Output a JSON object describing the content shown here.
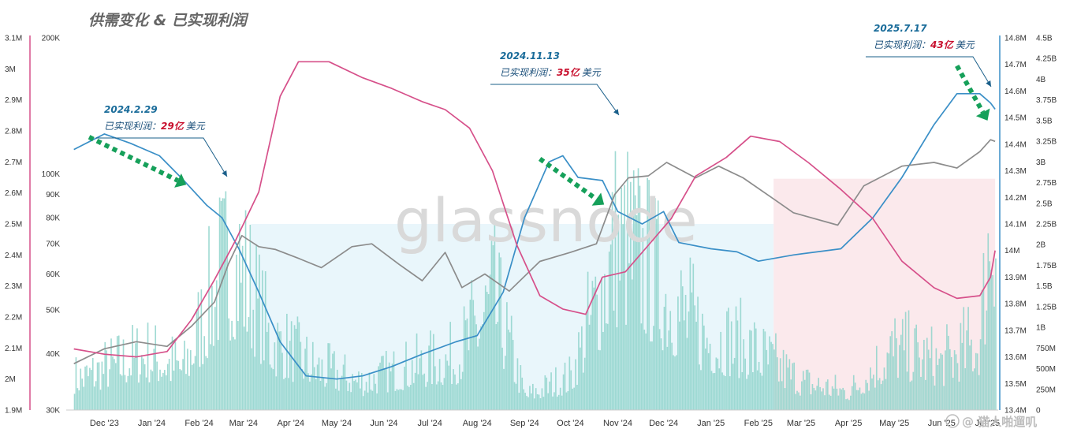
{
  "title": "供需变化 & 已实现利润",
  "watermark": "glassnode",
  "credit": "@ 猫人啪遛叽",
  "colors": {
    "supply_line": "#3a8fc7",
    "price_line": "#d6508a",
    "holders_line": "#8c8c8c",
    "volume_bars": "#8fd3cb",
    "band_blue": "#e9f6fb",
    "band_pink": "#fbe9ec",
    "arrow": "#16a05a",
    "annotation_date": "#1a6c9a",
    "annotation_value": "#c8102e"
  },
  "annotations": [
    {
      "date": "2024.2.29",
      "label": "已实现利润：",
      "value": "29亿",
      "unit": "美元"
    },
    {
      "date": "2024.11.13",
      "label": "已实现利润：",
      "value": "35亿",
      "unit": "美元"
    },
    {
      "date": "2025.7.17",
      "label": "已实现利润：",
      "value": "43亿",
      "unit": "美元"
    }
  ],
  "chart_data": {
    "type": "line",
    "x_ticks": [
      "Dec '23",
      "Jan '24",
      "Feb '24",
      "Mar '24",
      "Apr '24",
      "May '24",
      "Jun '24",
      "Jul '24",
      "Aug '24",
      "Sep '24",
      "Oct '24",
      "Nov '24",
      "Dec '24",
      "Jan '25",
      "Feb '25",
      "Mar '25",
      "Apr '25",
      "May '25",
      "Jun '25",
      "Jul '25"
    ],
    "axes": {
      "left_outer": {
        "scale": "linear",
        "ticks": [
          "3.1M",
          "3M",
          "2.9M",
          "2.8M",
          "2.7M",
          "2.6M",
          "2.5M",
          "2.4M",
          "2.3M",
          "2.2M",
          "2.1M",
          "2M",
          "1.9M"
        ],
        "range": [
          1900000,
          3100000
        ]
      },
      "left_inner": {
        "scale": "log",
        "ticks": [
          "200K",
          "100K",
          "90K",
          "80K",
          "70K",
          "60K",
          "50K",
          "40K",
          "30K"
        ],
        "range": [
          30000,
          200000
        ]
      },
      "right_inner": {
        "scale": "linear",
        "ticks": [
          "14.8M",
          "14.7M",
          "14.6M",
          "14.5M",
          "14.4M",
          "14.3M",
          "14.2M",
          "14.1M",
          "14M",
          "13.9M",
          "13.8M",
          "13.7M",
          "13.6M",
          "13.5M",
          "13.4M"
        ],
        "range": [
          13400000,
          14800000
        ]
      },
      "right_outer": {
        "scale": "linear",
        "ticks": [
          "4.5B",
          "4.25B",
          "4B",
          "3.75B",
          "3.5B",
          "3.25B",
          "3B",
          "2.75B",
          "2.5B",
          "2.25B",
          "2B",
          "1.75B",
          "1.5B",
          "1.25B",
          "1B",
          "750M",
          "500M",
          "250M",
          "0"
        ],
        "range": [
          0,
          4500000000
        ]
      }
    },
    "series": [
      {
        "axis": "left_outer",
        "style": "line",
        "points": [
          [
            "Nov 25 '23",
            2740000
          ],
          [
            "Dec 15 '23",
            2790000
          ],
          [
            "Jan 1 '24",
            2760000
          ],
          [
            "Jan 20 '24",
            2720000
          ],
          [
            "Feb 5 '24",
            2640000
          ],
          [
            "Feb 20 '24",
            2560000
          ],
          [
            "Mar 1 '24",
            2520000
          ],
          [
            "Mar 12 '24",
            2420000
          ],
          [
            "Mar 25 '24",
            2280000
          ],
          [
            "Apr 8 '24",
            2120000
          ],
          [
            "Apr 25 '24",
            2010000
          ],
          [
            "May 15 '24",
            2000000
          ],
          [
            "Jun 1 '24",
            2010000
          ],
          [
            "Jun 20 '24",
            2040000
          ],
          [
            "Jul 10 '24",
            2080000
          ],
          [
            "Aug 1 '24",
            2120000
          ],
          [
            "Aug 15 '24",
            2140000
          ],
          [
            "Sep 1 '24",
            2280000
          ],
          [
            "Sep 15 '24",
            2520000
          ],
          [
            "Oct 1 '24",
            2700000
          ],
          [
            "Oct 10 '24",
            2720000
          ],
          [
            "Oct 20 '24",
            2650000
          ],
          [
            "Nov 5 '24",
            2640000
          ],
          [
            "Nov 15 '24",
            2540000
          ],
          [
            "Dec 1 '24",
            2500000
          ],
          [
            "Dec 15 '24",
            2540000
          ],
          [
            "Dec 25 '24",
            2440000
          ],
          [
            "Jan 15 '25",
            2420000
          ],
          [
            "Feb 1 '25",
            2410000
          ],
          [
            "Feb 15 '25",
            2380000
          ],
          [
            "Mar 10 '25",
            2400000
          ],
          [
            "Apr 10 '25",
            2420000
          ],
          [
            "May 1 '25",
            2520000
          ],
          [
            "May 20 '25",
            2650000
          ],
          [
            "Jun 10 '25",
            2820000
          ],
          [
            "Jun 25 '25",
            2920000
          ],
          [
            "Jul 10 '25",
            2920000
          ],
          [
            "Jul 17 '25",
            2890000
          ],
          [
            "Jul 20 '25",
            2870000
          ]
        ]
      },
      {
        "axis": "left_inner",
        "style": "line",
        "points": [
          [
            "Nov 25 '23",
            38000
          ],
          [
            "Dec 15 '23",
            41000
          ],
          [
            "Jan 5 '24",
            42500
          ],
          [
            "Jan 25 '24",
            41500
          ],
          [
            "Feb 10 '24",
            46000
          ],
          [
            "Feb 25 '24",
            52000
          ],
          [
            "Mar 5 '24",
            63000
          ],
          [
            "Mar 14 '24",
            73000
          ],
          [
            "Mar 25 '24",
            69000
          ],
          [
            "Apr 5 '24",
            68000
          ],
          [
            "Apr 20 '24",
            65000
          ],
          [
            "May 5 '24",
            62000
          ],
          [
            "May 25 '24",
            69000
          ],
          [
            "Jun 7 '24",
            70000
          ],
          [
            "Jun 25 '24",
            63000
          ],
          [
            "Jul 10 '24",
            58000
          ],
          [
            "Jul 25 '24",
            67000
          ],
          [
            "Aug 5 '24",
            56000
          ],
          [
            "Aug 20 '24",
            60000
          ],
          [
            "Sep 5 '24",
            55000
          ],
          [
            "Sep 25 '24",
            64000
          ],
          [
            "Oct 15 '24",
            67000
          ],
          [
            "Nov 1 '24",
            70000
          ],
          [
            "Nov 13 '24",
            90000
          ],
          [
            "Nov 22 '24",
            98000
          ],
          [
            "Dec 5 '24",
            99000
          ],
          [
            "Dec 17 '24",
            106000
          ],
          [
            "Jan 5 '25",
            98000
          ],
          [
            "Jan 20 '25",
            104000
          ],
          [
            "Feb 5 '25",
            98000
          ],
          [
            "Feb 25 '25",
            88000
          ],
          [
            "Mar 10 '25",
            82000
          ],
          [
            "Apr 8 '25",
            77000
          ],
          [
            "Apr 25 '25",
            94000
          ],
          [
            "May 20 '25",
            104000
          ],
          [
            "Jun 10 '25",
            106000
          ],
          [
            "Jun 25 '25",
            103000
          ],
          [
            "Jul 10 '25",
            112000
          ],
          [
            "Jul 17 '25",
            119000
          ],
          [
            "Jul 20 '25",
            118000
          ]
        ]
      },
      {
        "axis": "right_inner",
        "style": "line",
        "points": [
          [
            "Nov 25 '23",
            13630000
          ],
          [
            "Dec 15 '23",
            13610000
          ],
          [
            "Jan 5 '24",
            13600000
          ],
          [
            "Jan 25 '24",
            13620000
          ],
          [
            "Feb 10 '24",
            13740000
          ],
          [
            "Feb 25 '24",
            13890000
          ],
          [
            "Mar 10 '24",
            14040000
          ],
          [
            "Mar 25 '24",
            14220000
          ],
          [
            "Apr 8 '24",
            14580000
          ],
          [
            "Apr 20 '24",
            14710000
          ],
          [
            "May 10 '24",
            14710000
          ],
          [
            "Jun 1 '24",
            14650000
          ],
          [
            "Jun 20 '24",
            14610000
          ],
          [
            "Jul 10 '24",
            14560000
          ],
          [
            "Jul 25 '24",
            14530000
          ],
          [
            "Aug 10 '24",
            14460000
          ],
          [
            "Aug 25 '24",
            14300000
          ],
          [
            "Sep 10 '24",
            14020000
          ],
          [
            "Sep 25 '24",
            13830000
          ],
          [
            "Oct 10 '24",
            13780000
          ],
          [
            "Oct 25 '24",
            13760000
          ],
          [
            "Nov 5 '24",
            13900000
          ],
          [
            "Nov 20 '24",
            13920000
          ],
          [
            "Dec 5 '24",
            14020000
          ],
          [
            "Dec 20 '24",
            14120000
          ],
          [
            "Jan 5 '25",
            14280000
          ],
          [
            "Jan 25 '25",
            14350000
          ],
          [
            "Feb 10 '25",
            14430000
          ],
          [
            "Mar 1 '25",
            14410000
          ],
          [
            "Mar 20 '25",
            14330000
          ],
          [
            "Apr 10 '25",
            14230000
          ],
          [
            "May 1 '25",
            14120000
          ],
          [
            "May 20 '25",
            13960000
          ],
          [
            "Jun 10 '25",
            13860000
          ],
          [
            "Jun 25 '25",
            13820000
          ],
          [
            "Jul 10 '25",
            13830000
          ],
          [
            "Jul 17 '25",
            13900000
          ],
          [
            "Jul 20 '25",
            14000000
          ]
        ]
      },
      {
        "axis": "right_outer",
        "style": "bar",
        "note_daily_envelope": true,
        "points": [
          [
            "Dec 1 '23",
            700000000
          ],
          [
            "Dec 15 '23",
            900000000
          ],
          [
            "Jan 10 '24",
            1200000000
          ],
          [
            "Feb 5 '24",
            900000000
          ],
          [
            "Feb 29 '24",
            2900000000
          ],
          [
            "Mar 12 '24",
            3100000000
          ],
          [
            "Apr 1 '24",
            1500000000
          ],
          [
            "May 1 '24",
            900000000
          ],
          [
            "Jun 1 '24",
            600000000
          ],
          [
            "Jul 1 '24",
            900000000
          ],
          [
            "Aug 1 '24",
            1100000000
          ],
          [
            "Aug 25 '24",
            2400000000
          ],
          [
            "Sep 15 '24",
            300000000
          ],
          [
            "Oct 15 '24",
            700000000
          ],
          [
            "Nov 13 '24",
            3500000000
          ],
          [
            "Nov 25 '24",
            3400000000
          ],
          [
            "Dec 10 '24",
            2700000000
          ],
          [
            "Jan 10 '25",
            1600000000
          ],
          [
            "Feb 10 '25",
            1300000000
          ],
          [
            "Mar 15 '25",
            600000000
          ],
          [
            "Apr 15 '25",
            400000000
          ],
          [
            "May 15 '25",
            1300000000
          ],
          [
            "Jun 15 '25",
            1000000000
          ],
          [
            "Jul 10 '25",
            1500000000
          ],
          [
            "Jul 17 '25",
            4300000000
          ],
          [
            "Jul 20 '25",
            4300000000
          ]
        ]
      }
    ]
  }
}
